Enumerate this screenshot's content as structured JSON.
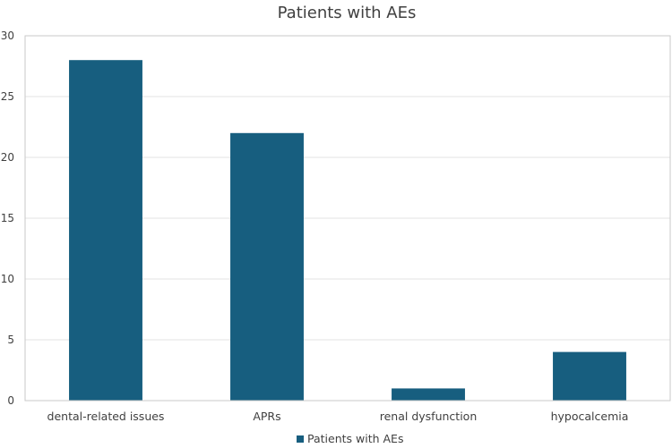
{
  "chart_data": {
    "type": "bar",
    "title": "Patients with AEs",
    "categories": [
      "dental-related issues",
      "APRs",
      "renal dysfunction",
      "hypocalcemia"
    ],
    "series": [
      {
        "name": "Patients with AEs",
        "values": [
          28,
          22,
          1,
          4
        ],
        "color": "#175e7f"
      }
    ],
    "ylim": [
      0,
      30
    ],
    "yticks": [
      0,
      5,
      10,
      15,
      20,
      25,
      30
    ],
    "grid": true,
    "legend": "bottom"
  }
}
